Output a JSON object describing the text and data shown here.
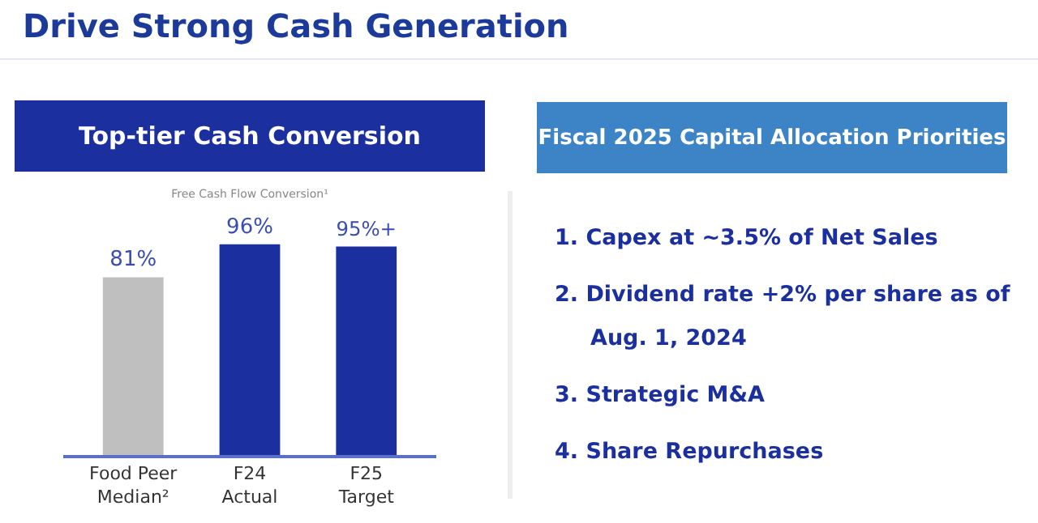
{
  "chart_data": [
    {
      "type": "other",
      "title": "Drive Strong Cash Generation"
    },
    {
      "type": "bar",
      "title": "Top-tier Cash Conversion",
      "subtitle": "Free Cash Flow Conversion¹",
      "categories": [
        "Food Peer Median²",
        "F24 Actual",
        "F25 Target"
      ],
      "values": [
        81,
        96,
        95
      ],
      "colors": [
        "#bfbfbf",
        "#1b2f9e",
        "#1b2f9e"
      ],
      "value_labels": [
        "81%",
        "96%",
        "95%+"
      ]
    },
    {
      "type": "other",
      "title": "Fiscal 2025 Capital Allocation Priorities",
      "annotations": [
        "1. Capex at ~3.5% of Net Sales",
        "2. Dividend rate +2% per share as of Aug. 1, 2024",
        "3. Strategic M&A",
        "4. Share Repurchases"
      ]
    }
  ]
}
